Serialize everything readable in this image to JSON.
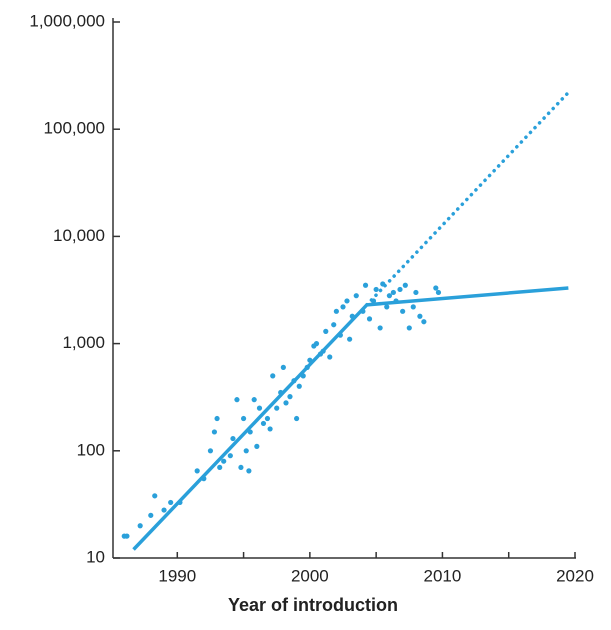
{
  "chart_data": {
    "type": "scatter",
    "x_label": "Year of introduction",
    "color": "#2aa0da",
    "xlim": [
      1985.15,
      2020
    ],
    "xticks": [
      1990,
      2000,
      2010,
      2020
    ],
    "xminor_ticks": [
      1995,
      2005,
      2015
    ],
    "ylim": [
      10,
      1000000
    ],
    "log_y": true,
    "yticks": [
      10,
      100,
      {
        "value": 1000,
        "label": "1,000"
      },
      {
        "value": 10000,
        "label": "10,000"
      },
      {
        "value": 100000,
        "label": "100,000"
      },
      {
        "value": 1000000,
        "label": "1,000,000"
      }
    ],
    "points": {
      "x": [
        1986,
        1986.2,
        1987.2,
        1988,
        1988.3,
        1989,
        1989.5,
        1990.2,
        1991.5,
        1992,
        1992.5,
        1992.8,
        1993,
        1993.2,
        1993.5,
        1994,
        1994.2,
        1994.5,
        1994.8,
        1995,
        1995.2,
        1995.4,
        1995.5,
        1995.8,
        1996,
        1996.2,
        1996.5,
        1996.8,
        1997,
        1997.2,
        1997.5,
        1997.8,
        1998,
        1998.2,
        1998.5,
        1998.8,
        1999,
        1999.2,
        1999.5,
        1999.8,
        2000,
        2000.3,
        2000.5,
        2000.8,
        2001,
        2001.2,
        2001.5,
        2001.8,
        2002,
        2002.3,
        2002.5,
        2002.8,
        2003,
        2003.2,
        2003.5,
        2004,
        2004.2,
        2004.5,
        2004.8,
        2005,
        2005.3,
        2005.5,
        2005.8,
        2006,
        2006.3,
        2006.5,
        2006.8,
        2007,
        2007.2,
        2007.5,
        2007.8,
        2008,
        2008.3,
        2008.6,
        2009.5,
        2009.7
      ],
      "y": [
        16,
        16,
        20,
        25,
        38,
        28,
        33,
        33,
        65,
        55,
        100,
        150,
        200,
        70,
        80,
        90,
        130,
        300,
        70,
        200,
        100,
        65,
        150,
        300,
        110,
        250,
        180,
        200,
        160,
        500,
        250,
        350,
        600,
        280,
        320,
        450,
        200,
        400,
        500,
        600,
        700,
        950,
        1000,
        800,
        850,
        1300,
        750,
        1500,
        2000,
        1200,
        2200,
        2500,
        1100,
        1800,
        2800,
        2000,
        3500,
        1700,
        2500,
        3200,
        1400,
        3600,
        2200,
        2800,
        3000,
        2500,
        3200,
        2000,
        3500,
        1400,
        2200,
        3000,
        1800,
        1600,
        3300,
        3000
      ]
    },
    "trend": {
      "x": [
        1986.7,
        2004.3,
        2019.5
      ],
      "values": [
        12,
        2300,
        3300
      ]
    },
    "projection": {
      "x": [
        2004.3,
        2019.5
      ],
      "values": [
        2300,
        220000
      ]
    }
  }
}
